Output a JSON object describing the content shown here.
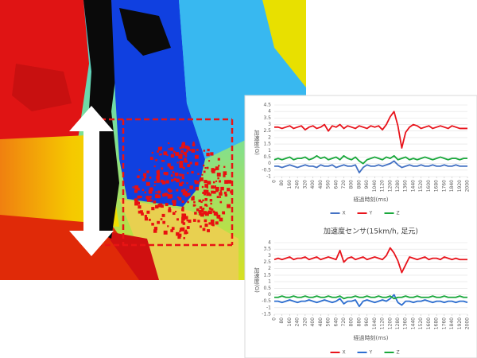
{
  "chart_data": [
    {
      "type": "line",
      "y_label": "加速度(G)",
      "x_label": "経過時刻(ms)",
      "x": [
        0,
        40,
        80,
        120,
        160,
        200,
        240,
        280,
        320,
        360,
        400,
        440,
        480,
        520,
        560,
        600,
        640,
        680,
        720,
        760,
        800,
        840,
        880,
        920,
        960,
        1000,
        1040,
        1080,
        1120,
        1160,
        1200,
        1240,
        1280,
        1320,
        1360,
        1400,
        1440,
        1480,
        1520,
        1560,
        1600,
        1640,
        1680,
        1720,
        1760,
        1800,
        1840,
        1880,
        1920,
        1960,
        2000
      ],
      "xlim": [
        0,
        2000
      ],
      "xticks": [
        0,
        80,
        160,
        240,
        320,
        400,
        480,
        560,
        640,
        720,
        800,
        880,
        960,
        1040,
        1120,
        1200,
        1280,
        1360,
        1440,
        1520,
        1600,
        1680,
        1760,
        1840,
        1920,
        2000
      ],
      "ylim": [
        -1,
        4.5
      ],
      "yticks": [
        -1,
        -0.5,
        0,
        0.5,
        1,
        1.5,
        2,
        2.5,
        3,
        3.5,
        4,
        4.5
      ],
      "grid": true,
      "legend": "bottom",
      "series": [
        {
          "name": "X",
          "color": "#4472c4",
          "values": [
            -0.2,
            -0.2,
            -0.3,
            -0.2,
            -0.1,
            -0.2,
            -0.3,
            -0.2,
            -0.1,
            -0.2,
            -0.2,
            -0.3,
            -0.1,
            -0.2,
            -0.2,
            -0.1,
            -0.3,
            -0.2,
            -0.1,
            -0.2,
            -0.2,
            -0.1,
            -0.7,
            -0.3,
            -0.1,
            -0.2,
            -0.2,
            -0.1,
            -0.2,
            -0.1,
            0.0,
            0.2,
            -0.1,
            -0.3,
            -0.2,
            -0.1,
            -0.2,
            -0.2,
            -0.1,
            -0.2,
            -0.2,
            -0.1,
            -0.2,
            -0.2,
            -0.1,
            -0.2,
            -0.2,
            -0.1,
            -0.2,
            -0.2,
            -0.2
          ]
        },
        {
          "name": "Y",
          "color": "#e8141c",
          "values": [
            2.8,
            2.8,
            2.7,
            2.8,
            2.9,
            2.7,
            2.8,
            2.9,
            2.6,
            2.8,
            2.9,
            2.7,
            2.8,
            3.0,
            2.5,
            2.9,
            2.8,
            3.0,
            2.7,
            2.9,
            2.8,
            2.7,
            2.9,
            2.8,
            2.7,
            2.9,
            2.8,
            2.9,
            2.6,
            3.0,
            3.6,
            4.0,
            2.9,
            1.2,
            2.4,
            2.8,
            3.0,
            2.9,
            2.7,
            2.8,
            2.9,
            2.7,
            2.8,
            2.9,
            2.8,
            2.7,
            2.9,
            2.8,
            2.7,
            2.7,
            2.7
          ]
        },
        {
          "name": "Z",
          "color": "#1aa83c",
          "values": [
            0.3,
            0.4,
            0.3,
            0.4,
            0.5,
            0.3,
            0.4,
            0.4,
            0.5,
            0.3,
            0.4,
            0.6,
            0.4,
            0.5,
            0.3,
            0.4,
            0.5,
            0.3,
            0.6,
            0.4,
            0.3,
            0.5,
            0.2,
            0.0,
            0.3,
            0.4,
            0.5,
            0.4,
            0.3,
            0.5,
            0.4,
            0.6,
            0.3,
            0.4,
            0.5,
            0.3,
            0.4,
            0.3,
            0.4,
            0.5,
            0.4,
            0.3,
            0.4,
            0.5,
            0.4,
            0.3,
            0.4,
            0.4,
            0.3,
            0.4,
            0.4
          ]
        }
      ]
    },
    {
      "type": "line",
      "title": "加速度センサ(15km/h, 足元)",
      "y_label": "加速度(G)",
      "x_label": "経過時刻(ms)",
      "x": [
        0,
        40,
        80,
        120,
        160,
        200,
        240,
        280,
        320,
        360,
        400,
        440,
        480,
        520,
        560,
        600,
        640,
        680,
        720,
        760,
        800,
        840,
        880,
        920,
        960,
        1000,
        1040,
        1080,
        1120,
        1160,
        1200,
        1240,
        1280,
        1320,
        1360,
        1400,
        1440,
        1480,
        1520,
        1560,
        1600,
        1640,
        1680,
        1720,
        1760,
        1800,
        1840,
        1880,
        1920,
        1960,
        2000
      ],
      "xlim": [
        0,
        2000
      ],
      "xticks": [
        0,
        80,
        160,
        240,
        320,
        400,
        480,
        560,
        640,
        720,
        800,
        880,
        960,
        1040,
        1120,
        1200,
        1280,
        1360,
        1440,
        1520,
        1600,
        1680,
        1760,
        1840,
        1920,
        2000
      ],
      "ylim": [
        -1.5,
        4
      ],
      "yticks": [
        -1.5,
        -1,
        -0.5,
        0,
        0.5,
        1,
        1.5,
        2,
        2.5,
        3,
        3.5,
        4
      ],
      "grid": true,
      "legend": "bottom",
      "series": [
        {
          "name": "X",
          "color": "#e8141c",
          "values": [
            2.7,
            2.8,
            2.7,
            2.8,
            2.9,
            2.7,
            2.8,
            2.8,
            2.9,
            2.7,
            2.8,
            2.9,
            2.7,
            2.8,
            2.9,
            2.8,
            2.7,
            3.4,
            2.5,
            2.8,
            2.9,
            2.7,
            2.8,
            2.9,
            2.7,
            2.8,
            2.9,
            2.8,
            2.7,
            3.0,
            3.6,
            3.2,
            2.6,
            1.7,
            2.3,
            2.9,
            2.8,
            2.7,
            2.8,
            2.9,
            2.7,
            2.8,
            2.8,
            2.7,
            2.9,
            2.8,
            2.7,
            2.8,
            2.7,
            2.7,
            2.7
          ]
        },
        {
          "name": "Y",
          "color": "#2e6fd0",
          "values": [
            -0.5,
            -0.5,
            -0.6,
            -0.5,
            -0.4,
            -0.5,
            -0.6,
            -0.5,
            -0.5,
            -0.4,
            -0.5,
            -0.6,
            -0.5,
            -0.4,
            -0.5,
            -0.6,
            -0.5,
            -0.3,
            -0.7,
            -0.5,
            -0.5,
            -0.4,
            -0.9,
            -0.5,
            -0.4,
            -0.5,
            -0.6,
            -0.5,
            -0.4,
            -0.5,
            -0.3,
            0.0,
            -0.6,
            -0.8,
            -0.5,
            -0.5,
            -0.6,
            -0.5,
            -0.5,
            -0.4,
            -0.5,
            -0.6,
            -0.5,
            -0.5,
            -0.6,
            -0.5,
            -0.5,
            -0.6,
            -0.5,
            -0.5,
            -0.6
          ]
        },
        {
          "name": "Z",
          "color": "#1aa83c",
          "values": [
            -0.2,
            -0.2,
            -0.1,
            -0.2,
            -0.2,
            -0.1,
            -0.2,
            -0.2,
            -0.1,
            -0.2,
            -0.2,
            -0.1,
            -0.2,
            -0.2,
            -0.1,
            -0.2,
            -0.2,
            -0.1,
            -0.3,
            -0.2,
            -0.2,
            -0.1,
            -0.2,
            -0.2,
            -0.1,
            -0.2,
            -0.2,
            -0.1,
            -0.2,
            -0.2,
            -0.1,
            -0.3,
            -0.2,
            -0.2,
            -0.1,
            -0.2,
            -0.2,
            -0.1,
            -0.2,
            -0.2,
            -0.2,
            -0.1,
            -0.2,
            -0.2,
            -0.1,
            -0.2,
            -0.2,
            -0.2,
            -0.1,
            -0.2,
            -0.2
          ]
        }
      ]
    }
  ]
}
